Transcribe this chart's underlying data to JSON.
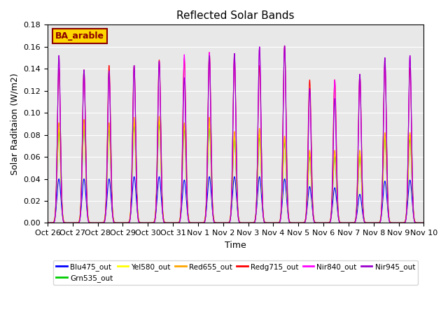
{
  "title": "Reflected Solar Bands",
  "xlabel": "Time",
  "ylabel": "Solar Raditaion (W/m2)",
  "ylim": [
    0,
    0.18
  ],
  "annotation": "BA_arable",
  "annotation_color": "#8B0000",
  "annotation_bg": "#FFD700",
  "background_color": "#E8E8E8",
  "series": [
    {
      "name": "Blu475_out",
      "color": "#0000FF"
    },
    {
      "name": "Grn535_out",
      "color": "#00CC00"
    },
    {
      "name": "Yel580_out",
      "color": "#FFFF00"
    },
    {
      "name": "Red655_out",
      "color": "#FFA500"
    },
    {
      "name": "Redg715_out",
      "color": "#FF0000"
    },
    {
      "name": "Nir840_out",
      "color": "#FF00FF"
    },
    {
      "name": "Nir945_out",
      "color": "#9900CC"
    }
  ],
  "n_days": 15,
  "peaks_blu": [
    0.04,
    0.04,
    0.04,
    0.042,
    0.042,
    0.039,
    0.042,
    0.042,
    0.042,
    0.04,
    0.033,
    0.032,
    0.026,
    0.038,
    0.039
  ],
  "peaks_grn": [
    0.083,
    0.087,
    0.085,
    0.088,
    0.09,
    0.085,
    0.086,
    0.076,
    0.078,
    0.073,
    0.06,
    0.06,
    0.06,
    0.077,
    0.076
  ],
  "peaks_yel": [
    0.086,
    0.089,
    0.088,
    0.091,
    0.093,
    0.088,
    0.091,
    0.079,
    0.081,
    0.076,
    0.063,
    0.063,
    0.063,
    0.08,
    0.08
  ],
  "peaks_red": [
    0.091,
    0.094,
    0.091,
    0.096,
    0.097,
    0.091,
    0.096,
    0.083,
    0.086,
    0.079,
    0.066,
    0.066,
    0.066,
    0.082,
    0.082
  ],
  "peaks_redg": [
    0.14,
    0.139,
    0.143,
    0.143,
    0.148,
    0.149,
    0.155,
    0.151,
    0.143,
    0.161,
    0.13,
    0.13,
    0.135,
    0.146,
    0.141
  ],
  "peaks_nir840": [
    0.152,
    0.139,
    0.138,
    0.143,
    0.147,
    0.153,
    0.155,
    0.154,
    0.16,
    0.161,
    0.122,
    0.13,
    0.135,
    0.15,
    0.152
  ],
  "peaks_nir945": [
    0.152,
    0.139,
    0.138,
    0.143,
    0.147,
    0.132,
    0.152,
    0.154,
    0.16,
    0.161,
    0.122,
    0.113,
    0.135,
    0.15,
    0.152
  ],
  "x_tick_labels": [
    "Oct 26",
    "Oct 27",
    "Oct 28",
    "Oct 29",
    "Oct 30",
    "Oct 31",
    "Nov 1",
    "Nov 2",
    "Nov 3",
    "Nov 4",
    "Nov 5",
    "Nov 6",
    "Nov 7",
    "Nov 8",
    "Nov 9",
    "Nov 10"
  ],
  "title_fontsize": 11,
  "label_fontsize": 9,
  "tick_fontsize": 8,
  "white_grid_linewidth": 0.8
}
